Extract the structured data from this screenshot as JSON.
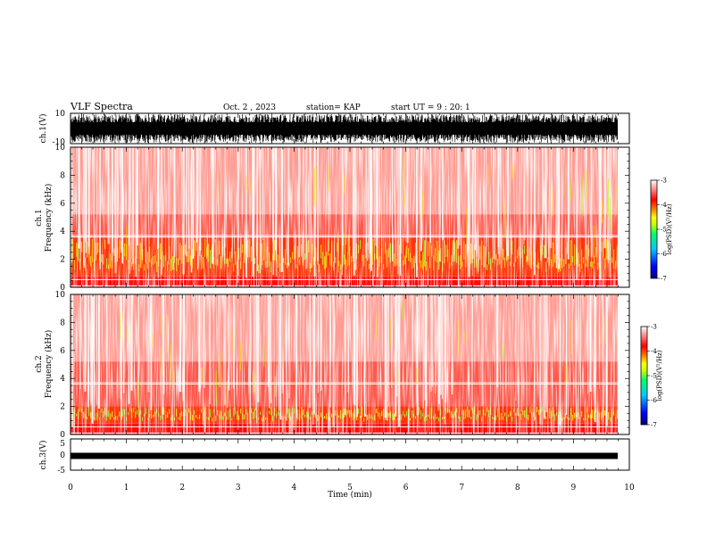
{
  "header": {
    "title": "VLF Spectra",
    "date": "Oct. 2 , 2023",
    "station": "station= KAP",
    "start_ut": "start UT =  9 : 20: 1"
  },
  "chart_data": [
    {
      "type": "line",
      "panel": "ch1-waveform",
      "ylabel": "ch.1(V)",
      "ylim": [
        -10,
        10
      ],
      "yticks": [
        "10",
        "-10"
      ],
      "xlim": [
        0,
        10
      ],
      "description_values": {
        "approx_amplitude_range": [
          -10,
          10
        ]
      }
    },
    {
      "type": "heatmap",
      "panel": "ch1-spectrogram",
      "ylabel_top": "ch.1",
      "ylabel": "Frequency  (kHz)",
      "ylim": [
        0,
        10
      ],
      "yticks": [
        "0",
        "2",
        "4",
        "6",
        "8",
        "10"
      ],
      "xlim": [
        0,
        10
      ],
      "strong_band_khz": [
        0.8,
        3.5
      ],
      "colorbar": {
        "label": "log(PSD)(V²/Hz)",
        "range": [
          -7,
          -3
        ],
        "ticks": [
          "-3",
          "-4",
          "-5",
          "-6",
          "-7"
        ]
      }
    },
    {
      "type": "heatmap",
      "panel": "ch2-spectrogram",
      "ylabel_top": "ch.2",
      "ylabel": "Frequency  (kHz)",
      "ylim": [
        0,
        10
      ],
      "yticks": [
        "0",
        "2",
        "4",
        "6",
        "8",
        "10"
      ],
      "xlim": [
        0,
        10
      ],
      "strong_band_khz": [
        0.8,
        2.0
      ],
      "colorbar": {
        "label": "log(PSD)(V²/Hz)",
        "range": [
          -7,
          -3
        ],
        "ticks": [
          "-3",
          "-4",
          "-5",
          "-6",
          "-7"
        ]
      }
    },
    {
      "type": "line",
      "panel": "ch3-waveform",
      "ylabel": "ch.3(V)",
      "ylim": [
        -5,
        5
      ],
      "yticks": [
        "5",
        "0",
        "-5"
      ],
      "xlim": [
        0,
        10
      ],
      "xlabel": "Time  (min)",
      "xticks": [
        "0",
        "1",
        "2",
        "3",
        "4",
        "5",
        "6",
        "7",
        "8",
        "9",
        "10"
      ],
      "description_values": {
        "approx_amplitude_range": [
          -0.8,
          0.8
        ]
      }
    }
  ],
  "colors": {
    "colormap": [
      "#000080",
      "#0000ff",
      "#00c8ff",
      "#00ff64",
      "#c8ff00",
      "#ffff00",
      "#ff6400",
      "#ff0000",
      "#ffffff"
    ],
    "trace": "#000000"
  }
}
